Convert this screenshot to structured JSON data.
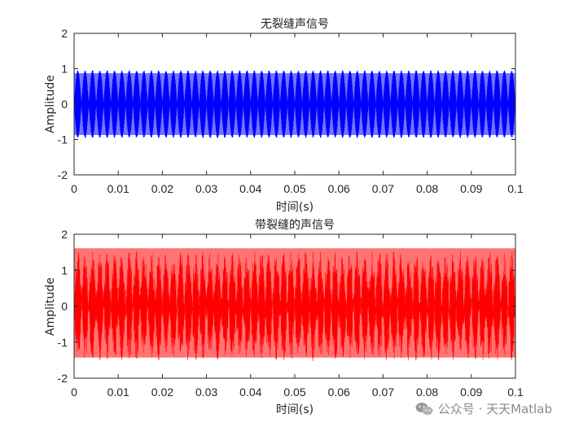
{
  "chart_data": [
    {
      "type": "line",
      "title": "无裂缝声信号",
      "xlabel": "时间(s)",
      "ylabel": "Amplitude",
      "xlim": [
        0,
        0.1
      ],
      "ylim": [
        -2,
        2
      ],
      "xticks": [
        "0",
        "0.01",
        "0.02",
        "0.03",
        "0.04",
        "0.05",
        "0.06",
        "0.07",
        "0.08",
        "0.09",
        "0.1"
      ],
      "yticks": [
        "-2",
        "-1",
        "0",
        "1",
        "2"
      ],
      "grid": false,
      "series": [
        {
          "color": "#0000ff",
          "signal": {
            "kind": "sinusoid",
            "amplitude": 0.95,
            "frequency_hz": 1000,
            "noise": 0.02
          },
          "envelope_max": 0.95,
          "envelope_min": -0.95
        }
      ]
    },
    {
      "type": "line",
      "title": "带裂缝的声信号",
      "xlabel": "时间(s)",
      "ylabel": "Amplitude",
      "xlim": [
        0,
        0.1
      ],
      "ylim": [
        -2,
        2
      ],
      "xticks": [
        "0",
        "0.01",
        "0.02",
        "0.03",
        "0.04",
        "0.05",
        "0.06",
        "0.07",
        "0.08",
        "0.09",
        "0.1"
      ],
      "yticks": [
        "-2",
        "-1",
        "0",
        "1",
        "2"
      ],
      "grid": false,
      "series": [
        {
          "color": "#ff0000",
          "signal": {
            "kind": "sinusoid_plus_noise",
            "amplitude": 1.2,
            "frequency_hz": 1000,
            "noise": 0.35
          },
          "envelope_max": 1.75,
          "envelope_min": -1.55
        }
      ]
    }
  ],
  "watermark": {
    "text": "公众号 · 天天Matlab",
    "icon": "wechat-icon",
    "color": "#8a8a8a"
  }
}
